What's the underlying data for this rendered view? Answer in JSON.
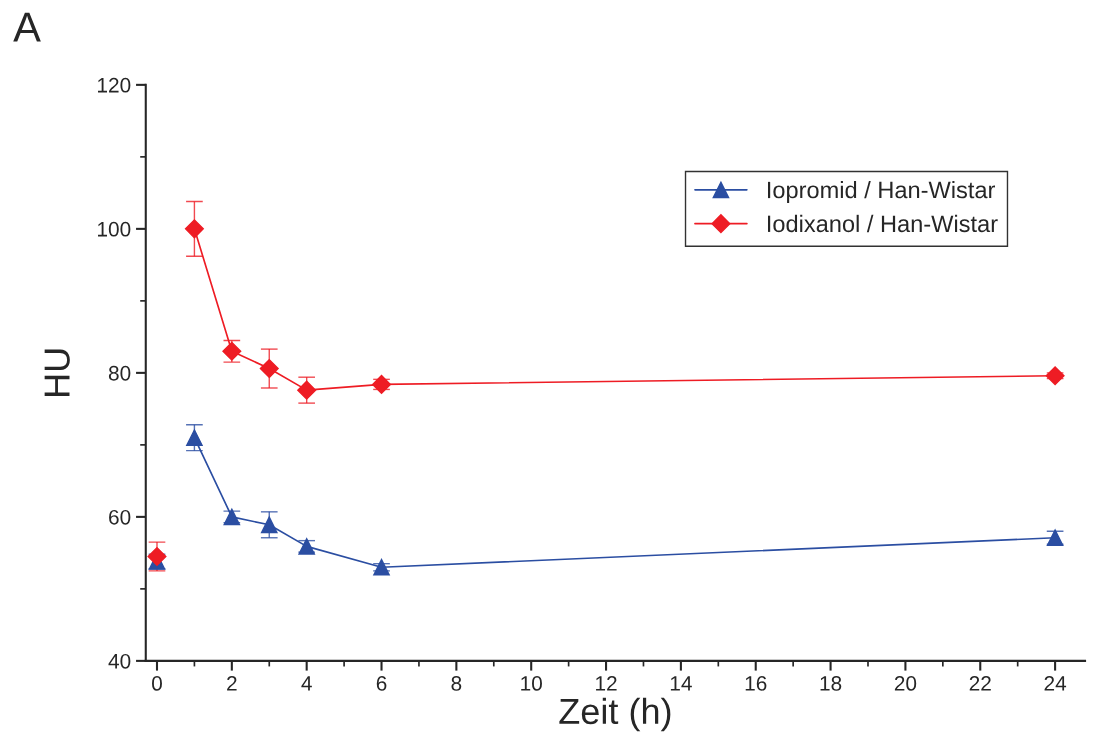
{
  "chart_data": {
    "type": "line",
    "title": "A",
    "xlabel": "Zeit (h)",
    "ylabel": "HU",
    "xlim": [
      -0.3,
      24.8
    ],
    "xticks": [
      0,
      2,
      4,
      6,
      8,
      10,
      12,
      14,
      16,
      18,
      20,
      22,
      24
    ],
    "ylim": [
      40,
      120
    ],
    "yticks": [
      40,
      60,
      80,
      100,
      120
    ],
    "grid": false,
    "legend": "top right",
    "series": [
      {
        "name": "Iopromid / Han-Wistar",
        "color": "#2b4ea2",
        "marker": "triangle",
        "x": [
          1,
          2,
          3,
          4,
          6,
          24
        ],
        "values": [
          71,
          60,
          58.9,
          55.9,
          53,
          57.1
        ],
        "errors": [
          1.8,
          0.8,
          1.8,
          0.8,
          0.5,
          0.9
        ]
      },
      {
        "name": "Iodixanol / Han-Wistar",
        "color": "#ee1c24",
        "marker": "diamond",
        "x": [
          1,
          2,
          3,
          4,
          6,
          24
        ],
        "values": [
          100,
          83,
          80.6,
          77.6,
          78.4,
          79.6
        ],
        "errors": [
          3.8,
          1.5,
          2.7,
          1.8,
          0.7,
          0.4
        ]
      },
      {
        "type": "scatter",
        "color": "#2b4ea2",
        "marker": "triangle",
        "x": [
          0
        ],
        "values": [
          53.8
        ],
        "errors": [
          1
        ]
      },
      {
        "type": "scatter",
        "color": "#ee1c24",
        "marker": "diamond",
        "x": [
          0
        ],
        "values": [
          54.5
        ],
        "errors": [
          2
        ]
      }
    ]
  }
}
